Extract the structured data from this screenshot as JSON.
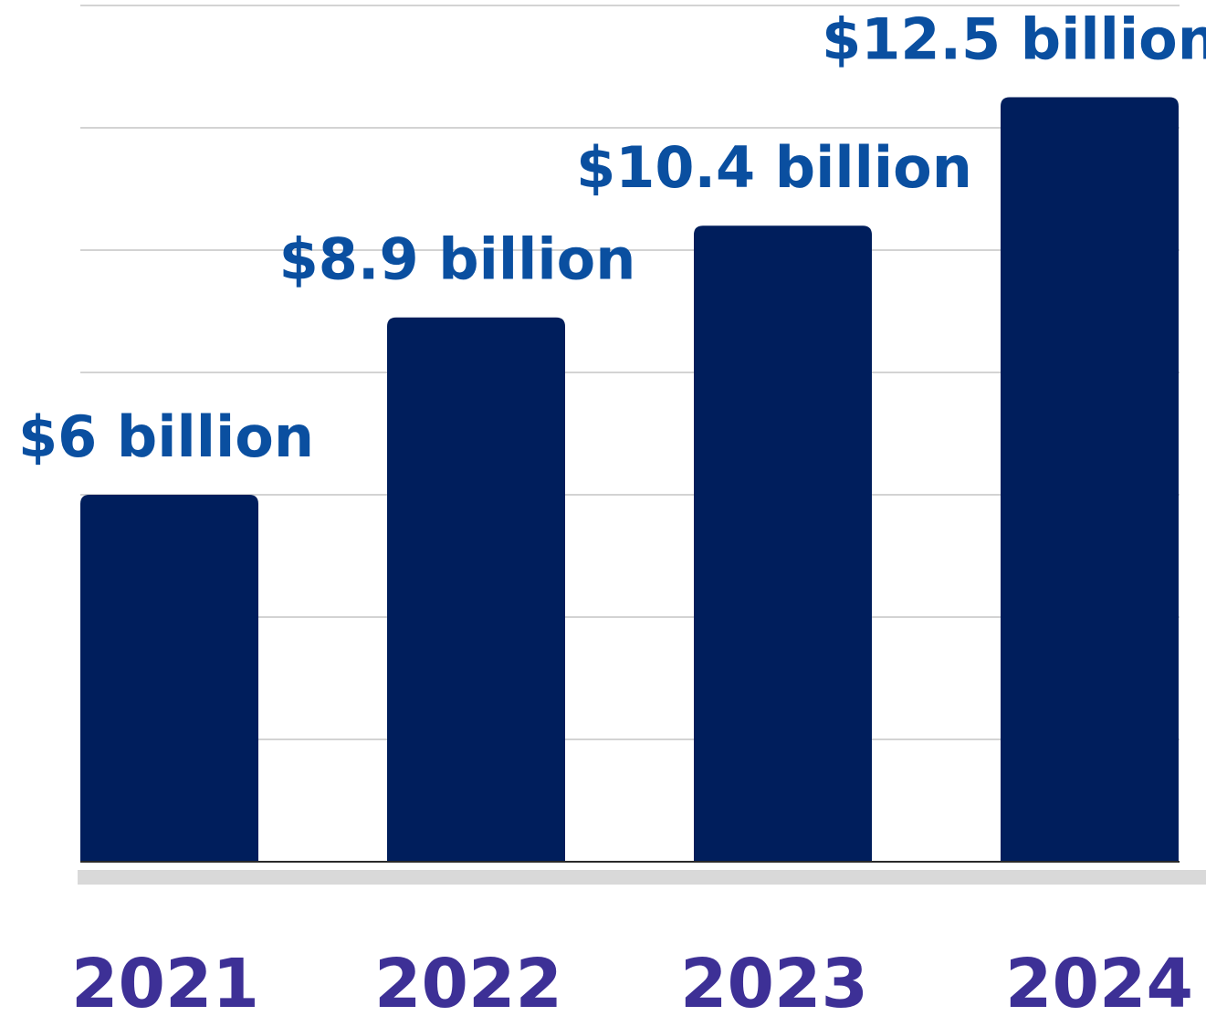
{
  "chart_data": {
    "type": "bar",
    "categories": [
      "2021",
      "2022",
      "2023",
      "2024"
    ],
    "values": [
      6,
      8.9,
      10.4,
      12.5
    ],
    "data_labels": [
      "$6 billion",
      "$8.9 billion",
      "$10.4 billion",
      "$12.5 billion"
    ],
    "title": "",
    "xlabel": "",
    "ylabel": "",
    "ylim": [
      0,
      14
    ],
    "grid": true,
    "legend": "none"
  },
  "colors": {
    "bar": "#001e5c",
    "value_label": "#0a4fa0",
    "year_label": "#3d3096"
  }
}
